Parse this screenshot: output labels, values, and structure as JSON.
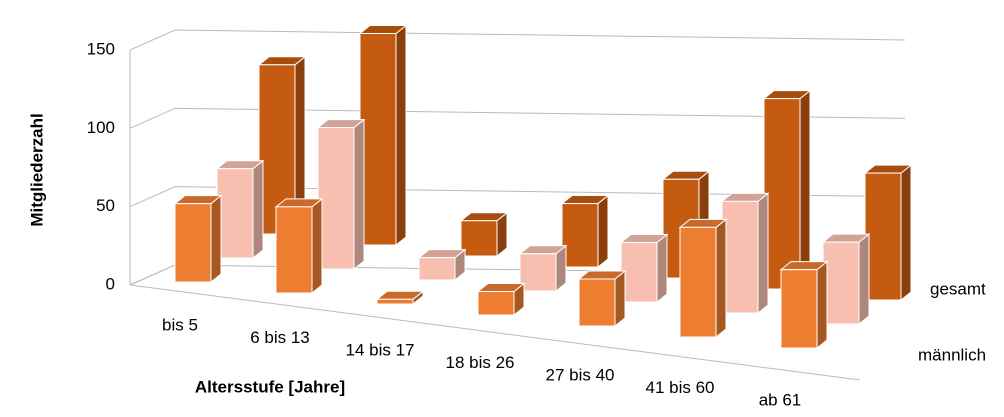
{
  "chart_data": {
    "type": "bar3d",
    "x_label": "Altersstufe [Jahre]",
    "y_label": "Mitgliederzahl",
    "categories": [
      "bis 5",
      "6 bis 13",
      "14 bis 17",
      "18 bis 26",
      "27 bis 40",
      "41 bis 60",
      "ab 61"
    ],
    "series": [
      {
        "name": "männlich",
        "color": "#ed7d31",
        "values": [
          50,
          55,
          3,
          15,
          30,
          70,
          50
        ]
      },
      {
        "name": null,
        "color": "#f8bfb0",
        "values": [
          60,
          95,
          15,
          25,
          40,
          75,
          55
        ]
      },
      {
        "name": "gesamt",
        "color": "#c55a11",
        "values": [
          120,
          150,
          25,
          45,
          70,
          135,
          90
        ]
      }
    ],
    "ylim": [
      0,
      150
    ],
    "yticks": [
      0,
      50,
      100,
      150
    ],
    "grid": true
  }
}
